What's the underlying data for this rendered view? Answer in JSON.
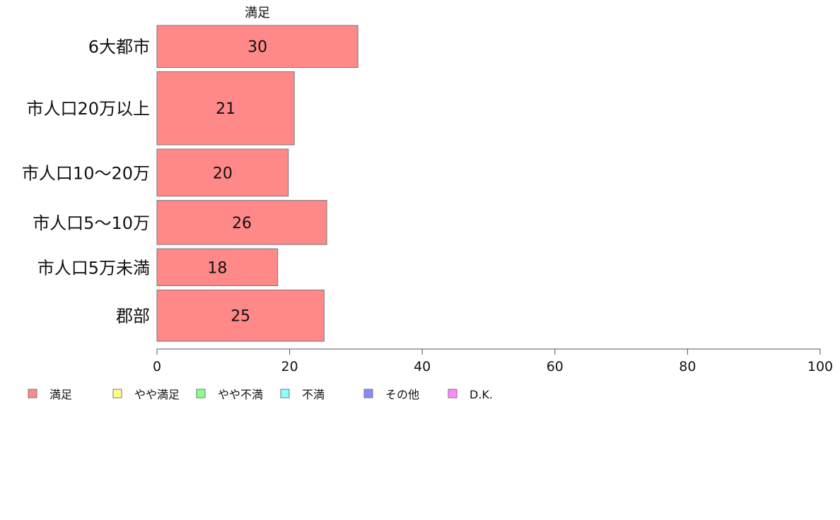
{
  "chart_data": {
    "type": "bar",
    "orientation": "horizontal",
    "stacked": true,
    "series_header": "満足",
    "categories": [
      "6大都市",
      "市人口20万以上",
      "市人口10〜20万",
      "市人口5〜10万",
      "市人口5万未満",
      "郡部"
    ],
    "category_weights": [
      1.0,
      1.74,
      1.12,
      1.05,
      0.88,
      1.22
    ],
    "series": [
      {
        "name": "満足",
        "values": [
          30.3,
          20.7,
          19.8,
          25.6,
          18.2,
          25.2
        ],
        "labels": [
          "30",
          "21",
          "20",
          "26",
          "18",
          "25"
        ],
        "color": "#ff8888"
      },
      {
        "name": "やや満足",
        "values": [
          0,
          0,
          0,
          0,
          0,
          0
        ],
        "color": "#ffff88"
      },
      {
        "name": "やや不満",
        "values": [
          0,
          0,
          0,
          0,
          0,
          0
        ],
        "color": "#88ff88"
      },
      {
        "name": "不満",
        "values": [
          0,
          0,
          0,
          0,
          0,
          0
        ],
        "color": "#88ffff"
      },
      {
        "name": "その他",
        "values": [
          0,
          0,
          0,
          0,
          0,
          0
        ],
        "color": "#8888ff"
      },
      {
        "name": "D.K.",
        "values": [
          0,
          0,
          0,
          0,
          0,
          0
        ],
        "color": "#ff88ff"
      }
    ],
    "xlim": [
      0,
      100
    ],
    "xticks": [
      0,
      20,
      40,
      60,
      80,
      100
    ],
    "xtick_labels": [
      "0",
      "20",
      "40",
      "60",
      "80",
      "100"
    ],
    "grid": false,
    "legend_position": "bottom-left"
  }
}
